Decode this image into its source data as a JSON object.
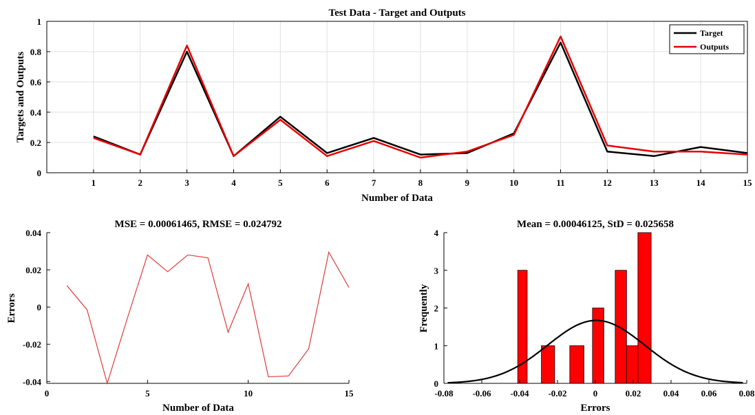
{
  "colors": {
    "target": "#000000",
    "outputs": "#e60000",
    "errors": "#dd3a3a",
    "bars": "#ff0000",
    "grid": "#e0e0e0",
    "fit": "#000000"
  },
  "chart_data": [
    {
      "type": "line",
      "title": "Test Data - Target and Outputs",
      "xlabel": "Number of Data",
      "ylabel": "Targets and Outputs",
      "xlim": [
        0,
        15
      ],
      "ylim": [
        0,
        1
      ],
      "xticks": [
        1,
        2,
        3,
        4,
        5,
        6,
        7,
        8,
        9,
        10,
        11,
        12,
        13,
        14,
        15
      ],
      "yticks": [
        0,
        0.2,
        0.4,
        0.6,
        0.8,
        1
      ],
      "grid": true,
      "legend": "top-right",
      "x": [
        1,
        2,
        3,
        4,
        5,
        6,
        7,
        8,
        9,
        10,
        11,
        12,
        13,
        14,
        15
      ],
      "series": [
        {
          "name": "Target",
          "values": [
            0.24,
            0.12,
            0.8,
            0.11,
            0.37,
            0.13,
            0.23,
            0.12,
            0.13,
            0.26,
            0.86,
            0.14,
            0.11,
            0.17,
            0.13
          ]
        },
        {
          "name": "Outputs",
          "values": [
            0.23,
            0.12,
            0.84,
            0.11,
            0.35,
            0.11,
            0.21,
            0.1,
            0.14,
            0.25,
            0.9,
            0.18,
            0.14,
            0.14,
            0.12
          ]
        }
      ]
    },
    {
      "type": "line",
      "title": "MSE = 0.00061465, RMSE = 0.024792",
      "xlabel": "Number of Data",
      "ylabel": "Errors",
      "xlim": [
        0,
        15
      ],
      "ylim": [
        -0.041,
        0.04
      ],
      "xticks": [
        0,
        5,
        10,
        15
      ],
      "yticks": [
        -0.04,
        -0.02,
        0,
        0.02,
        0.04
      ],
      "grid": false,
      "x": [
        1,
        2,
        3,
        4,
        5,
        6,
        7,
        8,
        9,
        10,
        11,
        12,
        13,
        14,
        15
      ],
      "values": [
        0.0115,
        -0.0015,
        -0.041,
        -0.006,
        0.028,
        0.019,
        0.028,
        0.0265,
        -0.0135,
        0.0125,
        -0.0375,
        -0.037,
        -0.0225,
        0.0295,
        0.0105
      ]
    },
    {
      "type": "bar",
      "title": "Mean = 0.00046125, StD = 0.025658",
      "xlabel": "Errors",
      "ylabel": "Frequently",
      "xlim": [
        -0.08,
        0.08
      ],
      "ylim": [
        0,
        4
      ],
      "xticks": [
        -0.08,
        -0.06,
        -0.04,
        -0.02,
        0,
        0.02,
        0.04,
        0.06,
        0.08
      ],
      "yticks": [
        0,
        1,
        2,
        3,
        4
      ],
      "grid": false,
      "bins": [
        {
          "from": -0.041,
          "to": -0.036,
          "count": 3
        },
        {
          "from": -0.0285,
          "to": -0.0215,
          "count": 1
        },
        {
          "from": -0.0135,
          "to": -0.006,
          "count": 1
        },
        {
          "from": -0.006,
          "to": -0.0015,
          "count": 0
        },
        {
          "from": -0.0015,
          "to": 0.0045,
          "count": 2
        },
        {
          "from": 0.0045,
          "to": 0.0105,
          "count": 0
        },
        {
          "from": 0.0105,
          "to": 0.0165,
          "count": 3
        },
        {
          "from": 0.0165,
          "to": 0.0225,
          "count": 1
        },
        {
          "from": 0.0225,
          "to": 0.0295,
          "count": 4
        }
      ],
      "fit": {
        "type": "normal",
        "mean": 0.00046125,
        "std": 0.025658,
        "peak": 1.67
      }
    }
  ]
}
